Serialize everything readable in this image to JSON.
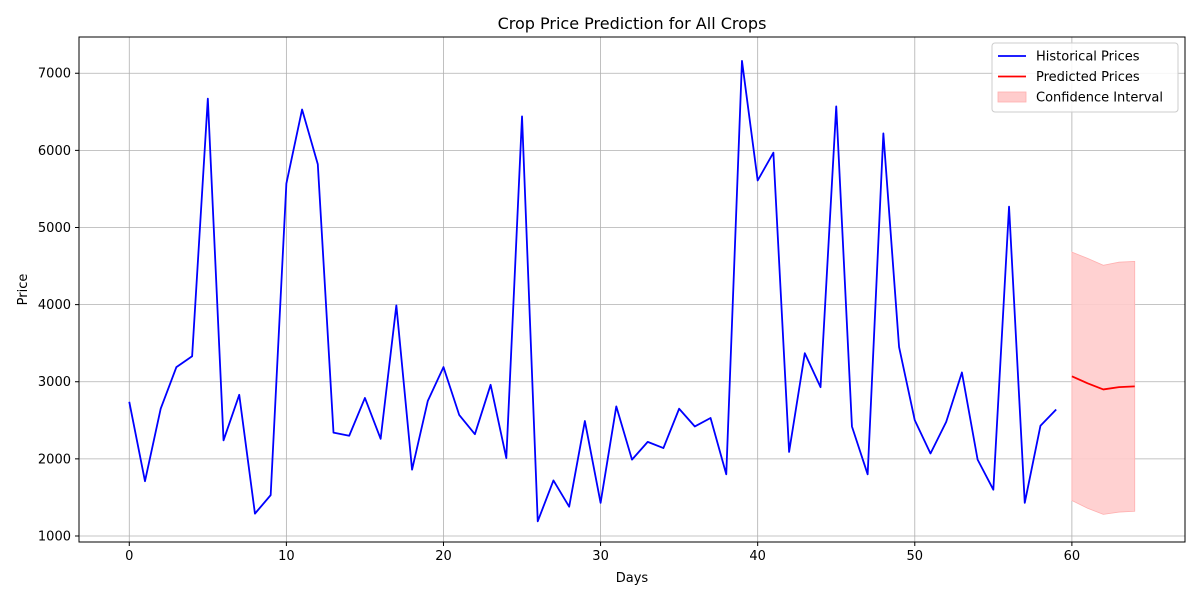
{
  "chart_data": {
    "type": "line",
    "title": "Crop Price Prediction for All Crops",
    "xlabel": "Days",
    "ylabel": "Price",
    "xlim": [
      -3.2,
      67.2
    ],
    "ylim": [
      922,
      7470
    ],
    "xticks": [
      0,
      10,
      20,
      30,
      40,
      50,
      60
    ],
    "yticks": [
      1000,
      2000,
      3000,
      4000,
      5000,
      6000,
      7000
    ],
    "grid": true,
    "legend_position": "top-right",
    "series": [
      {
        "name": "Historical Prices",
        "color": "#0000ff",
        "x": [
          0,
          1,
          2,
          3,
          4,
          5,
          6,
          7,
          8,
          9,
          10,
          11,
          12,
          13,
          14,
          15,
          16,
          17,
          18,
          19,
          20,
          21,
          22,
          23,
          24,
          25,
          26,
          27,
          28,
          29,
          30,
          31,
          32,
          33,
          34,
          35,
          36,
          37,
          38,
          39,
          40,
          41,
          42,
          43,
          44,
          45,
          46,
          47,
          48,
          49,
          50,
          51,
          52,
          53,
          54,
          55,
          56,
          57,
          58,
          59
        ],
        "values": [
          2740,
          1710,
          2650,
          3190,
          3330,
          6670,
          2240,
          2830,
          1290,
          1530,
          5570,
          6530,
          5820,
          2340,
          2300,
          2790,
          2260,
          3990,
          1860,
          2750,
          3190,
          2570,
          2320,
          2960,
          2010,
          6440,
          1190,
          1720,
          1380,
          2490,
          1430,
          2680,
          1990,
          2220,
          2140,
          2650,
          2420,
          2530,
          1800,
          7160,
          5610,
          5970,
          2090,
          3370,
          2930,
          6570,
          2420,
          1800,
          6220,
          3450,
          2500,
          2070,
          2480,
          3120,
          1990,
          1600,
          5270,
          1430,
          2430,
          2640
        ]
      },
      {
        "name": "Predicted Prices",
        "color": "#ff0000",
        "x": [
          60,
          61,
          62,
          63,
          64
        ],
        "values": [
          3070,
          2980,
          2900,
          2930,
          2940
        ]
      }
    ],
    "bands": [
      {
        "name": "Confidence Interval",
        "color": "#ffcccc",
        "x": [
          60,
          61,
          62,
          63,
          64
        ],
        "lower": [
          1460,
          1360,
          1280,
          1310,
          1320
        ],
        "upper": [
          4680,
          4600,
          4510,
          4550,
          4560
        ]
      }
    ]
  }
}
